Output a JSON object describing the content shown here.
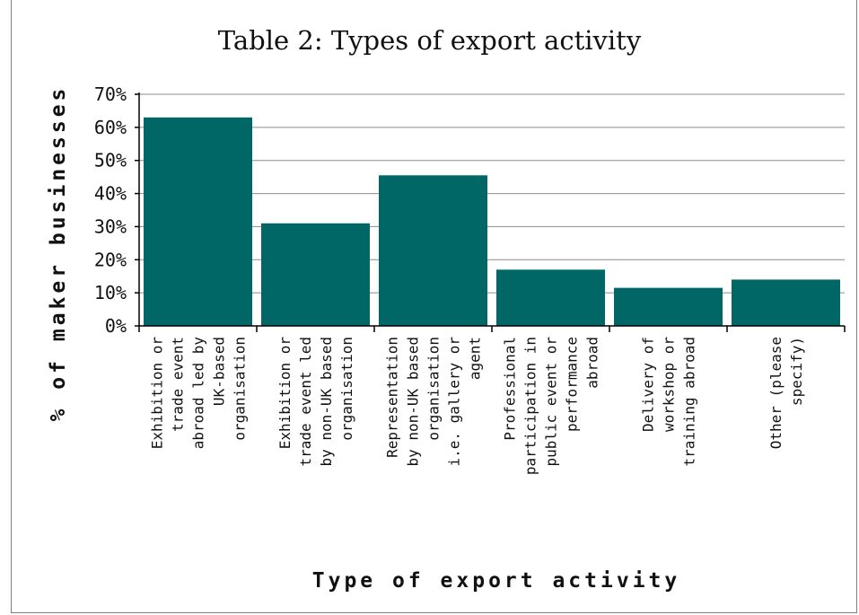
{
  "chart_data": {
    "type": "bar",
    "title": "Table 2: Types of export activity",
    "xlabel": "Type of export activity",
    "ylabel": "% of maker businesses",
    "ylim": [
      0,
      70
    ],
    "yticks": [
      "0%",
      "10%",
      "20%",
      "30%",
      "40%",
      "50%",
      "60%",
      "70%"
    ],
    "grid": true,
    "bar_color": "#006666",
    "categories": [
      [
        "Exhibition or",
        "trade event",
        "abroad led by",
        "UK-based",
        "organisation"
      ],
      [
        "Exhibition or",
        "trade event led",
        "by non-UK based",
        "organisation"
      ],
      [
        "Representation",
        "by non-UK based",
        "organisation",
        "i.e. gallery or",
        "agent"
      ],
      [
        "Professional",
        "participation in",
        "public event or",
        "performance",
        "abroad"
      ],
      [
        "Delivery of",
        "workshop or",
        "training abroad"
      ],
      [
        "Other (please",
        "specify)"
      ]
    ],
    "values": [
      63,
      31,
      45.5,
      17,
      11.5,
      14
    ]
  }
}
